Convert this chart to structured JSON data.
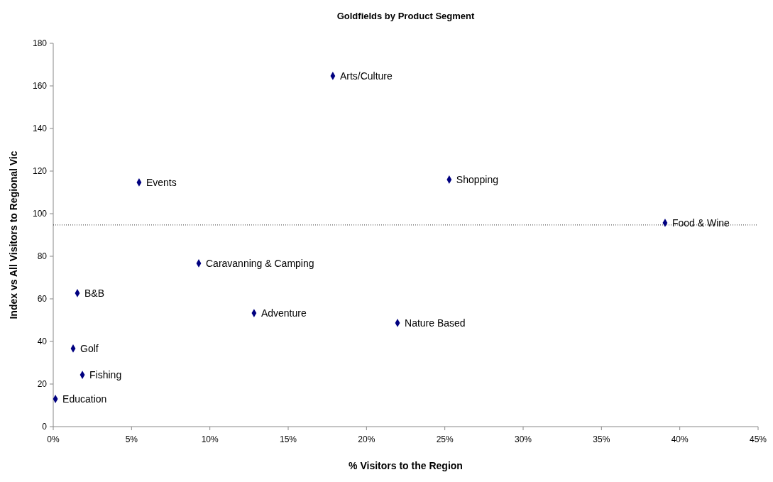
{
  "chart_data": {
    "type": "scatter",
    "title": "Goldfields by Product Segment",
    "xlabel": "% Visitors to the Region",
    "ylabel": "Index vs All Visitors to Regional Vic",
    "x": [
      0.14,
      1.86,
      1.27,
      1.54,
      5.48,
      9.29,
      12.82,
      17.85,
      21.98,
      25.28,
      39.06
    ],
    "series": [
      {
        "color": "#000080",
        "values": [
          13,
          24.3,
          36.7,
          62.7,
          114.7,
          76.7,
          53.3,
          164.7,
          48.7,
          116,
          95.7
        ]
      }
    ],
    "marker": "diamond",
    "grid": false,
    "xlim": [
      0,
      45
    ],
    "ylim": [
      0,
      180
    ],
    "xticks": [
      {
        "value": 0,
        "label": "0%"
      },
      {
        "value": 5,
        "label": "5%"
      },
      {
        "value": 10,
        "label": "10%"
      },
      {
        "value": 15,
        "label": "15%"
      },
      {
        "value": 20,
        "label": "20%"
      },
      {
        "value": 25,
        "label": "25%"
      },
      {
        "value": 30,
        "label": "30%"
      },
      {
        "value": 35,
        "label": "35%"
      },
      {
        "value": 40,
        "label": "40%"
      },
      {
        "value": 45,
        "label": "45%"
      }
    ],
    "yticks": [
      0,
      20,
      40,
      60,
      80,
      100,
      120,
      140,
      160,
      180
    ],
    "ref_lines": [
      {
        "axis": "y",
        "value": 94.7,
        "line_style": "dotted",
        "color": "#000000"
      }
    ],
    "annotations": [
      {
        "text": "Education",
        "x": 0.14,
        "y": 13
      },
      {
        "text": "Fishing",
        "x": 1.86,
        "y": 24.3
      },
      {
        "text": "Golf",
        "x": 1.27,
        "y": 36.7
      },
      {
        "text": "B&B",
        "x": 1.54,
        "y": 62.7
      },
      {
        "text": "Events",
        "x": 5.48,
        "y": 114.7
      },
      {
        "text": "Caravanning & Camping",
        "x": 9.29,
        "y": 76.7
      },
      {
        "text": "Adventure",
        "x": 12.82,
        "y": 53.3
      },
      {
        "text": "Arts/Culture",
        "x": 17.85,
        "y": 164.7
      },
      {
        "text": "Nature Based",
        "x": 21.98,
        "y": 48.7
      },
      {
        "text": "Shopping",
        "x": 25.28,
        "y": 116
      },
      {
        "text": "Food & Wine",
        "x": 39.06,
        "y": 95.7
      }
    ]
  }
}
